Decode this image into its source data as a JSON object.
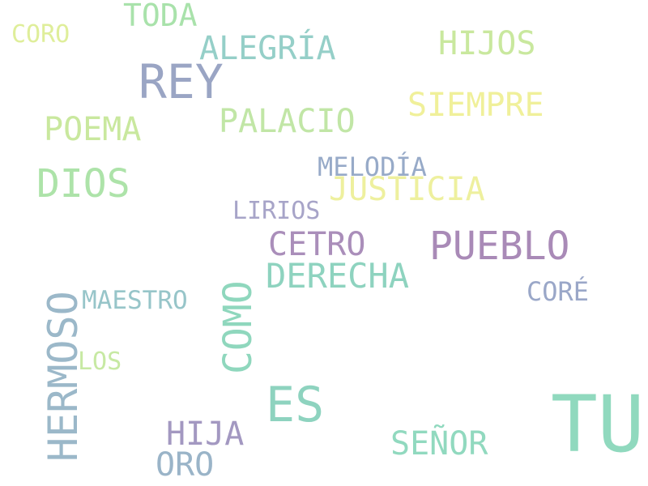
{
  "words": [
    {
      "text": "TU",
      "color": "#90d9be"
    },
    {
      "text": "ES",
      "color": "#8ed3bf"
    },
    {
      "text": "PUEBLO",
      "color": "#a98ab7"
    },
    {
      "text": "REY",
      "color": "#9aa5c4"
    },
    {
      "text": "DIOS",
      "color": "#ade3a9"
    },
    {
      "text": "HERMOSO",
      "color": "#9bb8c9"
    },
    {
      "text": "COMO",
      "color": "#8fd7bd"
    },
    {
      "text": "ALEGRÍA",
      "color": "#95cfc8"
    },
    {
      "text": "HIJOS",
      "color": "#c9e89e"
    },
    {
      "text": "SIEMPRE",
      "color": "#f0f09a"
    },
    {
      "text": "PALACIO",
      "color": "#c1e6a6"
    },
    {
      "text": "POEMA",
      "color": "#c9e89e"
    },
    {
      "text": "TODA",
      "color": "#a9e2ab"
    },
    {
      "text": "CORO",
      "color": "#dfee9a"
    },
    {
      "text": "JUSTICIA",
      "color": "#eef09e"
    },
    {
      "text": "MELODÍA",
      "color": "#97aac8"
    },
    {
      "text": "LIRIOS",
      "color": "#a7a4c8"
    },
    {
      "text": "CETRO",
      "color": "#aa8eba"
    },
    {
      "text": "DERECHA",
      "color": "#8ed3bf"
    },
    {
      "text": "MAESTRO",
      "color": "#97c5c9"
    },
    {
      "text": "CORÉ",
      "color": "#9aa7c8"
    },
    {
      "text": "LOS",
      "color": "#c7e9a3"
    },
    {
      "text": "HIJA",
      "color": "#a398c1"
    },
    {
      "text": "ORO",
      "color": "#9ab4c8"
    },
    {
      "text": "SEÑOR",
      "color": "#91d9bf"
    }
  ]
}
